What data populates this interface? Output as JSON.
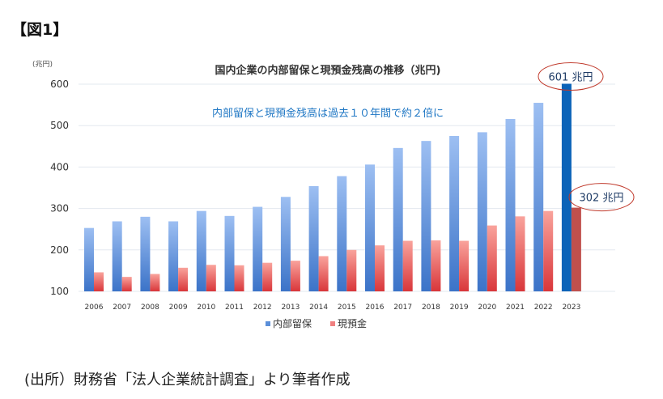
{
  "figure_label": "【図1】",
  "source": "(出所）財務省「法人企業統計調査」より筆者作成",
  "chart_data": {
    "type": "bar",
    "title": "国内企業の内部留保と現預金残高の推移（兆円)",
    "subtitle": "内部留保と現預金残高は過去１０年間で約２倍に",
    "ylabel": "(兆円)",
    "ylim": [
      100,
      600
    ],
    "yticks": [
      100,
      200,
      300,
      400,
      500,
      600
    ],
    "grid": true,
    "legend_position": "bottom",
    "categories": [
      "2006",
      "2007",
      "2008",
      "2009",
      "2010",
      "2011",
      "2012",
      "2013",
      "2014",
      "2015",
      "2016",
      "2017",
      "2018",
      "2019",
      "2020",
      "2021",
      "2022",
      "2023"
    ],
    "series": [
      {
        "name": "内部留保",
        "color": "#5b8fd9",
        "highlight_color": "#0b63b8",
        "values": [
          253,
          269,
          280,
          269,
          294,
          282,
          304,
          328,
          354,
          378,
          406,
          446,
          463,
          475,
          484,
          516,
          555,
          601
        ]
      },
      {
        "name": "現預金",
        "color": "#f08080",
        "highlight_color": "#c0504d",
        "values": [
          146,
          135,
          142,
          157,
          164,
          163,
          169,
          174,
          185,
          200,
          211,
          222,
          223,
          222,
          259,
          281,
          294,
          302
        ]
      }
    ],
    "annotations": [
      {
        "text": "601 兆円",
        "series": 0,
        "category": "2023"
      },
      {
        "text": "302 兆円",
        "series": 1,
        "category": "2023"
      }
    ]
  }
}
